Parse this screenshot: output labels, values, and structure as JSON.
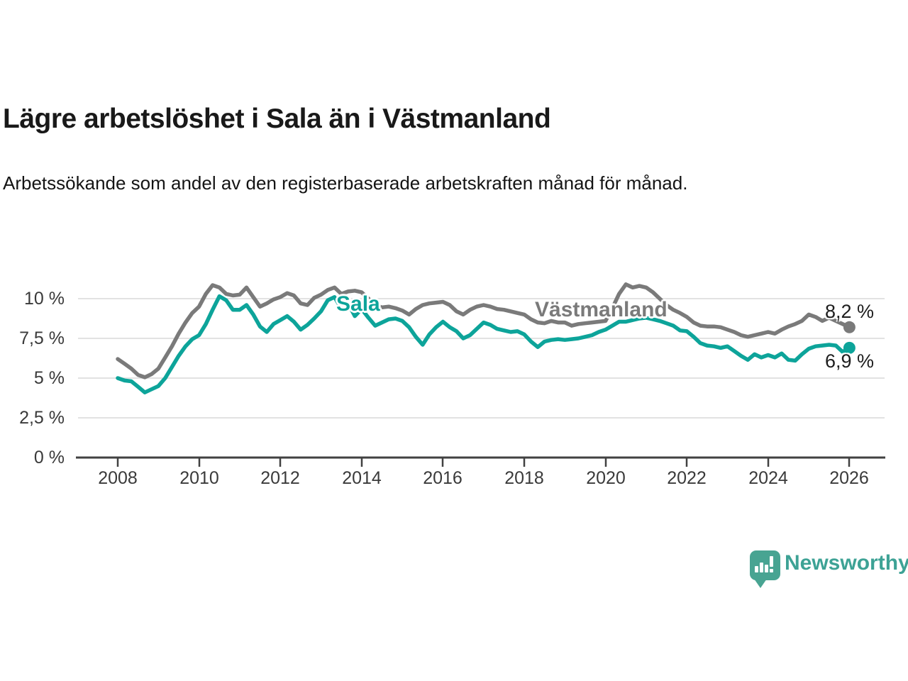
{
  "header": {
    "title": "Lägre arbetslöshet i Sala än i Västmanland",
    "subtitle": "Arbetssökande som andel av den registerbaserade arbetskraften månad för månad."
  },
  "chart_data": {
    "type": "line",
    "title": "Lägre arbetslöshet i Sala än i Västmanland",
    "xlabel": "",
    "ylabel": "",
    "grid": true,
    "ylim": [
      0,
      11.5
    ],
    "y_ticks": [
      "10 %",
      "7,5 %",
      "5 %",
      "2,5 %",
      "0 %"
    ],
    "y_tick_values": [
      10,
      7.5,
      5,
      2.5,
      0
    ],
    "x_ticks": [
      "2008",
      "2010",
      "2012",
      "2014",
      "2016",
      "2018",
      "2020",
      "2022",
      "2024",
      "2026"
    ],
    "x_tick_years": [
      2008,
      2010,
      2012,
      2014,
      2016,
      2018,
      2020,
      2022,
      2024,
      2026
    ],
    "x_start_year": 2008,
    "x_step_months": 2,
    "series": [
      {
        "name": "Västmanland",
        "color": "#7a7a7a",
        "end_label": "8,2 %",
        "last_value": 8.2,
        "values": [
          6.2,
          5.9,
          5.6,
          5.2,
          5.05,
          5.25,
          5.6,
          6.3,
          7.0,
          7.8,
          8.5,
          9.1,
          9.5,
          10.3,
          10.85,
          10.7,
          10.3,
          10.2,
          10.25,
          10.7,
          10.1,
          9.5,
          9.7,
          9.95,
          10.1,
          10.35,
          10.2,
          9.7,
          9.6,
          10.05,
          10.25,
          10.55,
          10.7,
          10.3,
          10.45,
          10.5,
          10.4,
          10.0,
          9.6,
          9.45,
          9.5,
          9.4,
          9.25,
          9.0,
          9.35,
          9.6,
          9.7,
          9.75,
          9.8,
          9.6,
          9.2,
          9.0,
          9.3,
          9.5,
          9.6,
          9.5,
          9.35,
          9.3,
          9.2,
          9.1,
          9.0,
          8.7,
          8.5,
          8.45,
          8.6,
          8.5,
          8.5,
          8.3,
          8.4,
          8.45,
          8.5,
          8.55,
          8.6,
          9.4,
          10.3,
          10.9,
          10.7,
          10.8,
          10.7,
          10.4,
          10.0,
          9.6,
          9.3,
          9.1,
          8.85,
          8.5,
          8.3,
          8.25,
          8.25,
          8.2,
          8.05,
          7.9,
          7.7,
          7.6,
          7.7,
          7.8,
          7.9,
          7.8,
          8.05,
          8.25,
          8.4,
          8.6,
          9.0,
          8.85,
          8.6,
          8.8,
          8.6,
          8.4,
          8.2
        ]
      },
      {
        "name": "Sala",
        "color": "#0da49a",
        "end_label": "6,9 %",
        "last_value": 6.9,
        "values": [
          5.0,
          4.85,
          4.8,
          4.45,
          4.1,
          4.3,
          4.5,
          5.0,
          5.7,
          6.4,
          7.0,
          7.45,
          7.7,
          8.4,
          9.3,
          10.15,
          9.9,
          9.3,
          9.3,
          9.6,
          9.0,
          8.25,
          7.9,
          8.4,
          8.65,
          8.9,
          8.55,
          8.05,
          8.35,
          8.75,
          9.2,
          9.9,
          10.1,
          9.4,
          9.7,
          8.9,
          9.35,
          8.8,
          8.3,
          8.5,
          8.7,
          8.75,
          8.6,
          8.2,
          7.6,
          7.1,
          7.75,
          8.2,
          8.55,
          8.2,
          7.95,
          7.5,
          7.7,
          8.1,
          8.5,
          8.35,
          8.1,
          8.0,
          7.9,
          7.95,
          7.75,
          7.3,
          6.95,
          7.3,
          7.4,
          7.45,
          7.4,
          7.45,
          7.5,
          7.6,
          7.7,
          7.9,
          8.05,
          8.3,
          8.55,
          8.55,
          8.65,
          8.75,
          8.8,
          8.7,
          8.6,
          8.45,
          8.3,
          8.0,
          7.95,
          7.6,
          7.2,
          7.05,
          7.0,
          6.9,
          7.0,
          6.7,
          6.4,
          6.15,
          6.5,
          6.3,
          6.45,
          6.3,
          6.55,
          6.15,
          6.1,
          6.5,
          6.85,
          7.0,
          7.05,
          7.1,
          7.05,
          6.65,
          6.9
        ]
      }
    ]
  },
  "footer": {
    "brand": "Newsworthy",
    "brand_color": "#3da295",
    "logo_color": "#48a492"
  }
}
